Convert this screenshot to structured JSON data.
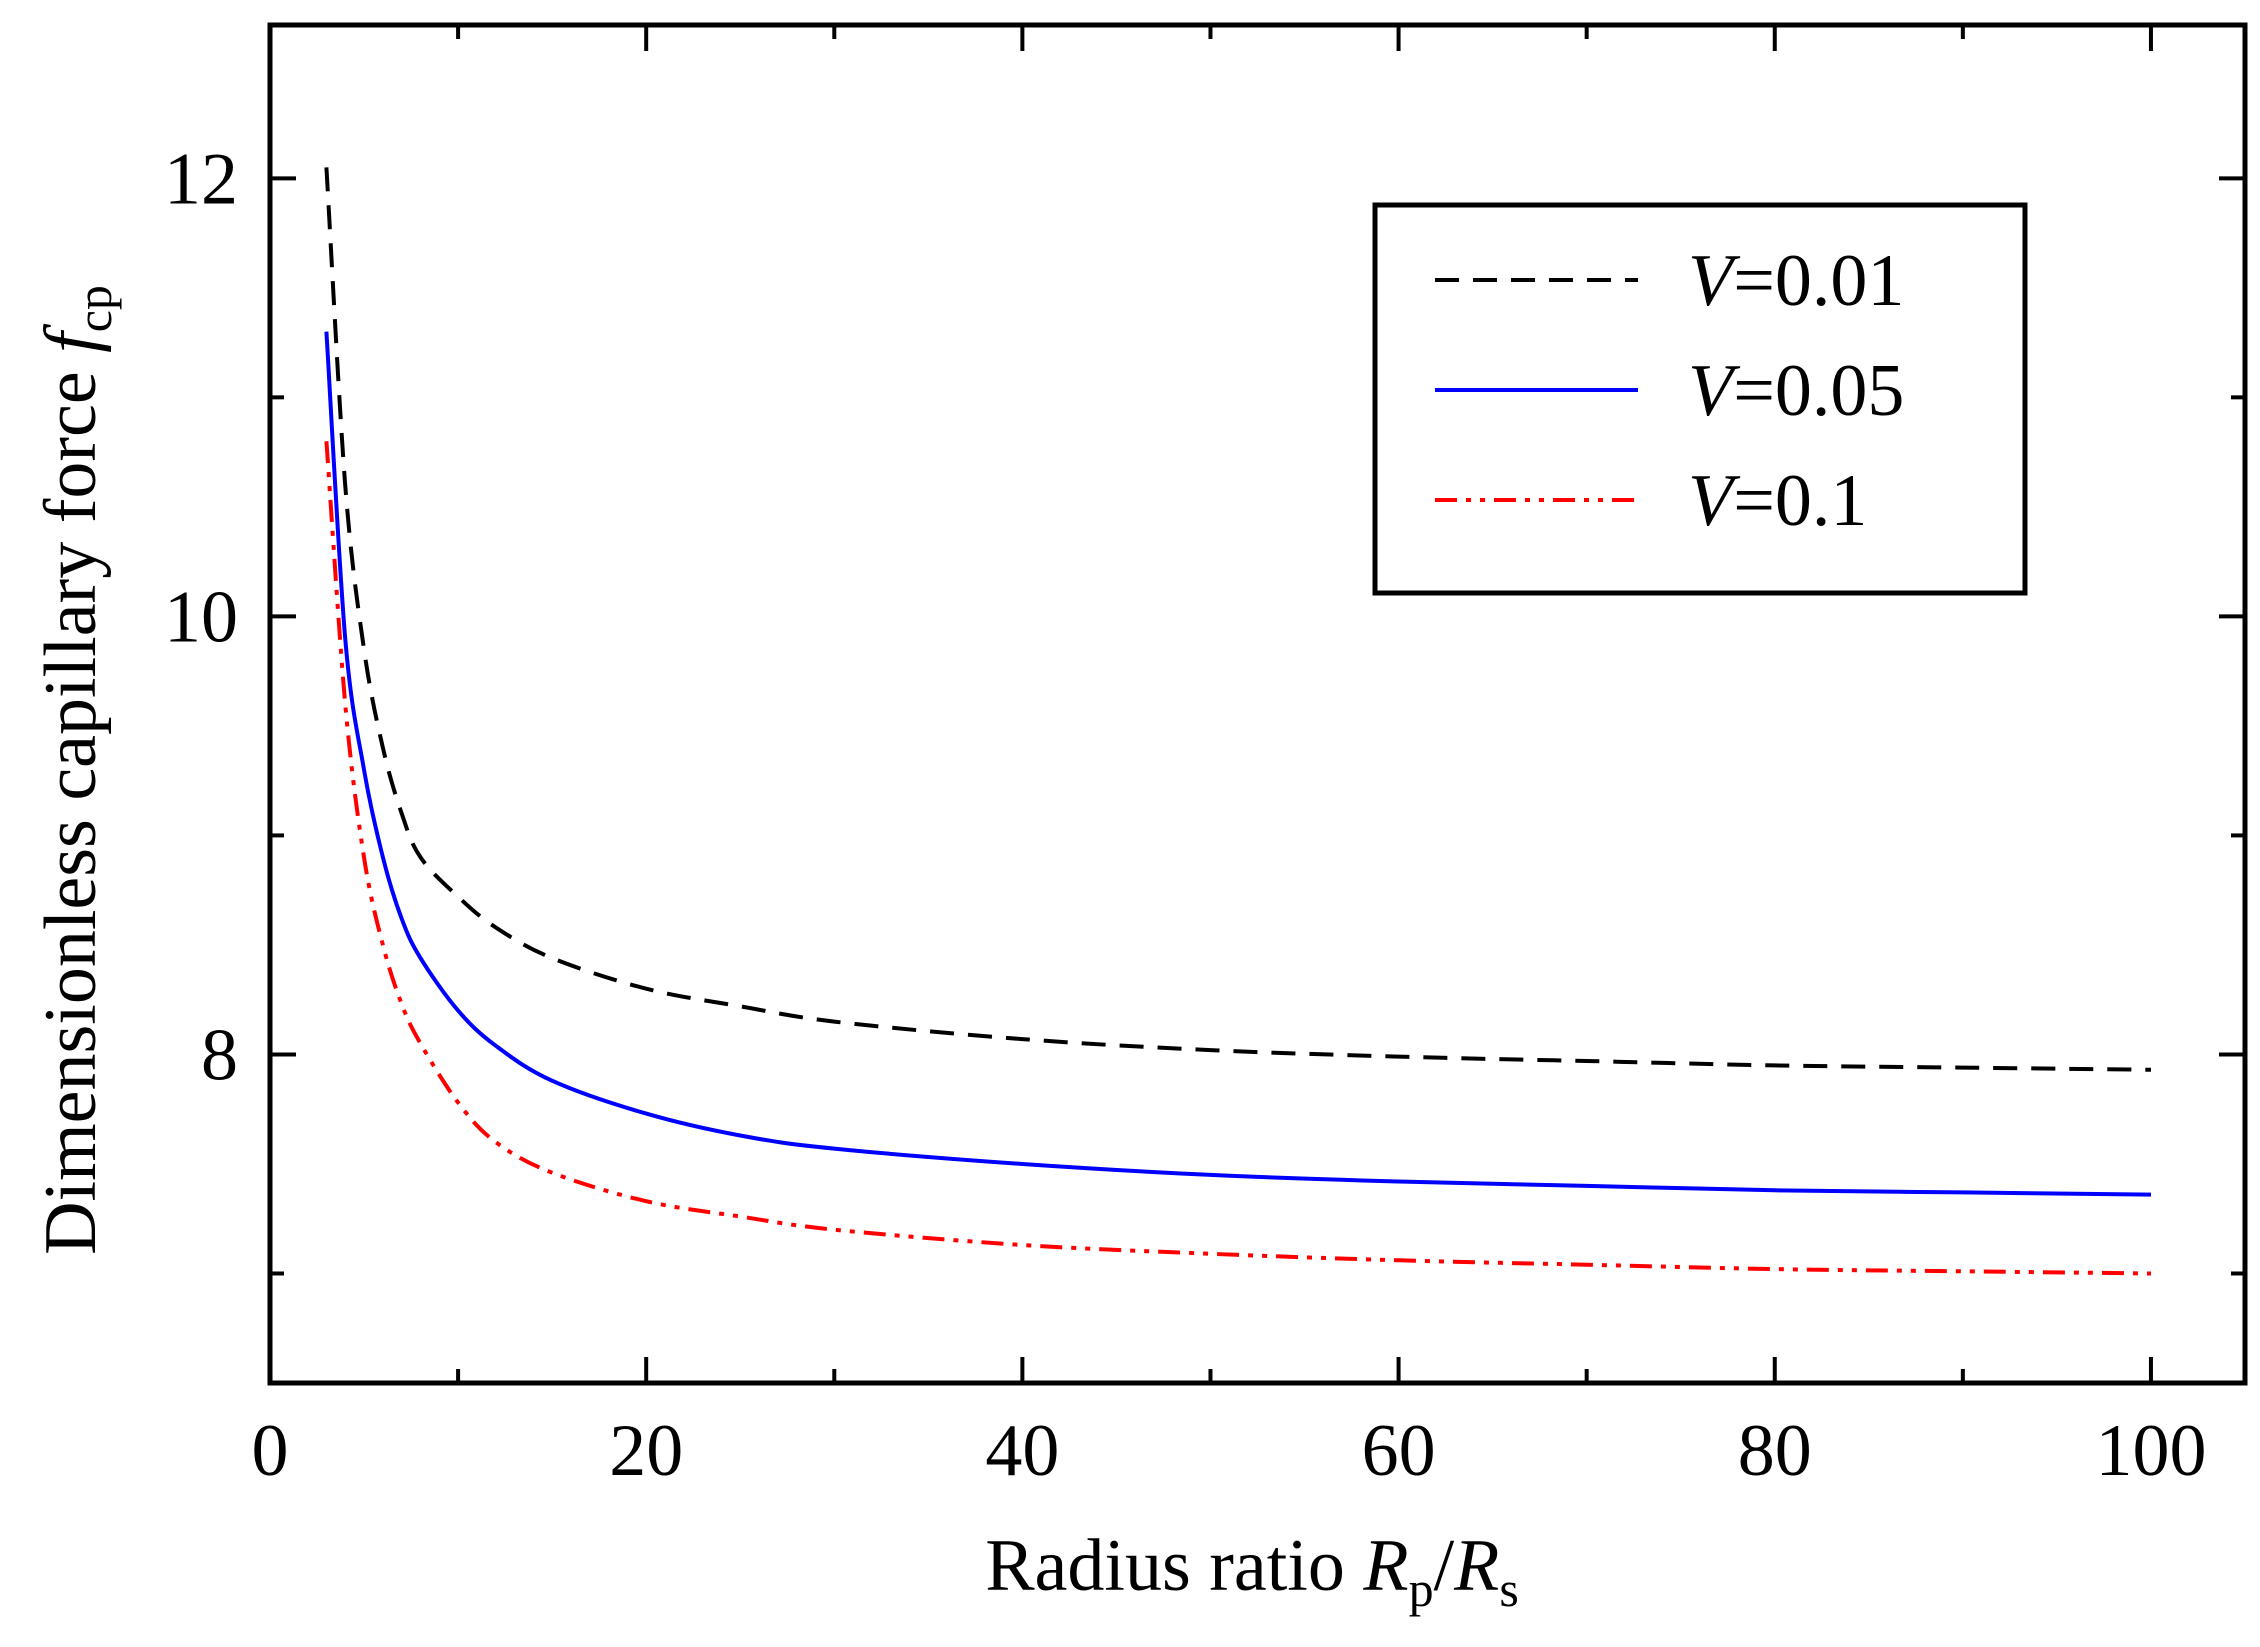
{
  "chart_data": {
    "type": "line",
    "title": "",
    "xlabel": {
      "prefix": "Radius ratio ",
      "var1": "R",
      "sub1": "p",
      "slash": "/",
      "var2": "R",
      "sub2": "s"
    },
    "ylabel": {
      "prefix": "Dimensionless capillary force ",
      "var": "f",
      "sub": "cp"
    },
    "xlim": [
      0,
      105
    ],
    "ylim": [
      6.5,
      12.7
    ],
    "xticks": [
      0,
      20,
      40,
      60,
      80,
      100
    ],
    "xtick_labels": [
      "0",
      "20",
      "40",
      "60",
      "80",
      "100"
    ],
    "yticks": [
      8,
      10,
      12
    ],
    "ytick_labels": [
      "8",
      "10",
      "12"
    ],
    "x_minor_step": 10,
    "y_minor_step": 1,
    "legend_position": "top-right",
    "series": [
      {
        "name": "V=0.01",
        "legend_var": "V",
        "legend_value": "=0.01",
        "color": "#000000",
        "style": "dashed",
        "x": [
          3,
          4,
          5,
          6,
          7,
          8,
          10,
          12,
          15,
          20,
          25,
          30,
          40,
          50,
          60,
          70,
          80,
          90,
          100
        ],
        "y": [
          12.05,
          10.6,
          9.85,
          9.4,
          9.1,
          8.9,
          8.72,
          8.58,
          8.44,
          8.3,
          8.22,
          8.15,
          8.07,
          8.02,
          7.99,
          7.97,
          7.95,
          7.94,
          7.93
        ]
      },
      {
        "name": "V=0.05",
        "legend_var": "V",
        "legend_value": "=0.05",
        "color": "#0000ff",
        "style": "solid",
        "x": [
          3,
          4,
          5,
          6,
          7,
          8,
          10,
          12,
          15,
          20,
          25,
          30,
          40,
          50,
          60,
          70,
          80,
          90,
          100
        ],
        "y": [
          11.3,
          9.9,
          9.3,
          8.9,
          8.62,
          8.44,
          8.2,
          8.04,
          7.88,
          7.73,
          7.63,
          7.57,
          7.5,
          7.45,
          7.42,
          7.4,
          7.38,
          7.37,
          7.36
        ]
      },
      {
        "name": "V=0.1",
        "legend_var": "V",
        "legend_value": "=0.1",
        "color": "#ff0000",
        "style": "dash-dot-dot",
        "x": [
          3,
          4,
          5,
          6,
          7,
          8,
          10,
          12,
          15,
          20,
          25,
          30,
          40,
          50,
          60,
          70,
          80,
          90,
          100
        ],
        "y": [
          10.8,
          9.6,
          8.9,
          8.5,
          8.23,
          8.05,
          7.78,
          7.6,
          7.46,
          7.33,
          7.26,
          7.2,
          7.13,
          7.09,
          7.06,
          7.04,
          7.02,
          7.01,
          7.0
        ]
      }
    ]
  }
}
